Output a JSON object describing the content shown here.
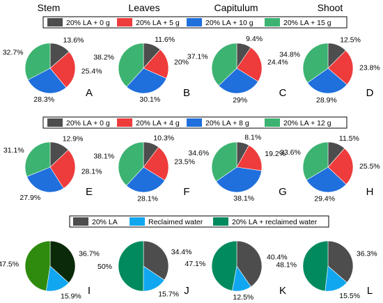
{
  "column_headers": [
    "Stem",
    "Leaves",
    "Capitulum",
    "Shoot"
  ],
  "colors": {
    "gray": "#4d4d4d",
    "red": "#ee3b3b",
    "blue": "#1f6fdc",
    "green": "#3cb371",
    "lightblue": "#11a7f0",
    "teal": "#008a5e"
  },
  "chart_data": [
    {
      "type": "pie",
      "legend": [
        {
          "label": "20% LA + 0 g",
          "color": "#4d4d4d"
        },
        {
          "label": "20% LA + 5 g",
          "color": "#ee3b3b"
        },
        {
          "label": "20% LA + 10 g",
          "color": "#1f6fdc"
        },
        {
          "label": "20% LA + 15 g",
          "color": "#3cb371"
        }
      ],
      "panels": [
        {
          "letter": "A",
          "values": [
            13.6,
            25.4,
            28.3,
            32.7
          ],
          "labels": [
            "13.6%",
            "25.4%",
            "28.3%",
            "32.7%"
          ]
        },
        {
          "letter": "B",
          "values": [
            11.6,
            20,
            30.1,
            38.2
          ],
          "labels": [
            "11.6%",
            "20%",
            "30.1%",
            "38.2%"
          ]
        },
        {
          "letter": "C",
          "values": [
            9.4,
            24.4,
            29,
            37.1
          ],
          "labels": [
            "9.4%",
            "24.4%",
            "29%",
            "37.1%"
          ]
        },
        {
          "letter": "D",
          "values": [
            12.5,
            23.8,
            28.9,
            34.8
          ],
          "labels": [
            "12.5%",
            "23.8%",
            "28.9%",
            "34.8%"
          ]
        }
      ]
    },
    {
      "type": "pie",
      "legend": [
        {
          "label": "20% LA + 0 g",
          "color": "#4d4d4d"
        },
        {
          "label": "20% LA + 4 g",
          "color": "#ee3b3b"
        },
        {
          "label": "20% LA + 8 g",
          "color": "#1f6fdc"
        },
        {
          "label": "20% LA + 12 g",
          "color": "#3cb371"
        }
      ],
      "panels": [
        {
          "letter": "E",
          "values": [
            12.9,
            28.1,
            27.9,
            31.1
          ],
          "labels": [
            "12.9%",
            "28.1%",
            "27.9%",
            "31.1%"
          ]
        },
        {
          "letter": "F",
          "values": [
            10.3,
            23.5,
            28.1,
            38.1
          ],
          "labels": [
            "10.3%",
            "23.5%",
            "28.1%",
            "38.1%"
          ]
        },
        {
          "letter": "G",
          "values": [
            8.1,
            19.2,
            38.1,
            34.6
          ],
          "labels": [
            "8.1%",
            "19.2%",
            "38.1%",
            "34.6%"
          ]
        },
        {
          "letter": "H",
          "values": [
            11.5,
            25.5,
            29.4,
            33.6
          ],
          "labels": [
            "11.5%",
            "25.5%",
            "29.4%",
            "33.6%"
          ]
        }
      ]
    },
    {
      "type": "pie",
      "legend": [
        {
          "label": "20% LA",
          "color": "#4d4d4d"
        },
        {
          "label": "Reclaimed water",
          "color": "#11a7f0"
        },
        {
          "label": "20% LA + reclaimed water",
          "color": "#008a5e"
        }
      ],
      "panels": [
        {
          "letter": "I",
          "values": [
            36.7,
            15.9,
            47.5
          ],
          "labels": [
            "36.7%",
            "15.9%",
            "47.5%"
          ],
          "colors": [
            "#0a2a0a",
            "#11a7f0",
            "#2e8b0e"
          ]
        },
        {
          "letter": "J",
          "values": [
            34.4,
            15.7,
            50
          ],
          "labels": [
            "34.4%",
            "15.7%",
            "50%"
          ]
        },
        {
          "letter": "K",
          "values": [
            40.4,
            12.5,
            47.1
          ],
          "labels": [
            "40.4%",
            "12.5%",
            "47.1%"
          ]
        },
        {
          "letter": "L",
          "values": [
            36.3,
            15.5,
            48.1
          ],
          "labels": [
            "36.3%",
            "15.5%",
            "48.1%"
          ]
        }
      ]
    }
  ]
}
